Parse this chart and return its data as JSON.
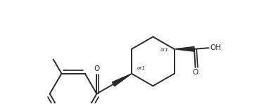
{
  "bg_color": "#ffffff",
  "line_color": "#2a2a2a",
  "line_width": 1.4,
  "fig_width": 3.68,
  "fig_height": 1.48,
  "dpi": 100,
  "or1_label": "or1",
  "O_label": "O",
  "OH_label": "OH"
}
